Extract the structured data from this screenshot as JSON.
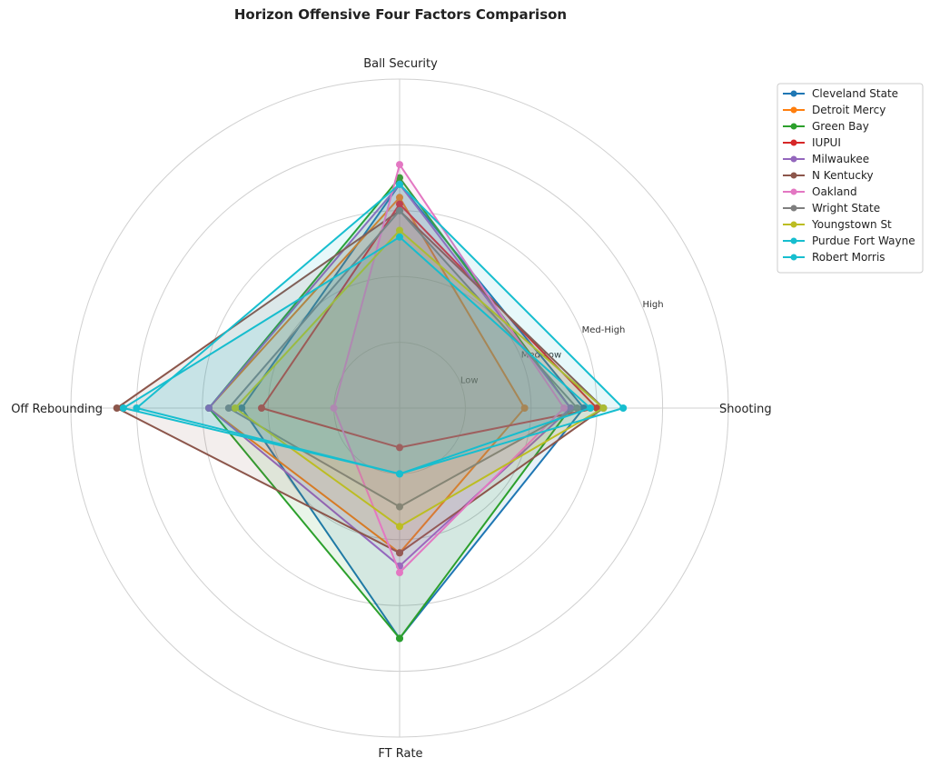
{
  "chart_data": {
    "type": "radar",
    "title": "Horizon Offensive Four Factors Comparison",
    "axes": [
      "Shooting",
      "Ball Security",
      "Off Rebounding",
      "FT Rate"
    ],
    "rlim": [
      0,
      5
    ],
    "ring_labels": [
      "Low",
      "Med-Low",
      "Med-High",
      "High"
    ],
    "grid": true,
    "legend_position": "upper-right-outside",
    "series": [
      {
        "name": "Cleveland State",
        "color": "#1f77b4",
        "values": [
          2.8,
          3.4,
          2.4,
          3.5
        ]
      },
      {
        "name": "Detroit Mercy",
        "color": "#ff7f0e",
        "values": [
          1.9,
          3.2,
          2.9,
          2.2
        ]
      },
      {
        "name": "Green Bay",
        "color": "#2ca02c",
        "values": [
          2.6,
          3.5,
          2.9,
          3.5
        ]
      },
      {
        "name": "IUPUI",
        "color": "#d62728",
        "values": [
          3.0,
          3.1,
          2.1,
          0.6
        ]
      },
      {
        "name": "Milwaukee",
        "color": "#9467bd",
        "values": [
          2.6,
          3.4,
          2.9,
          2.4
        ]
      },
      {
        "name": "N Kentucky",
        "color": "#8c564b",
        "values": [
          3.1,
          3.0,
          4.3,
          2.2
        ]
      },
      {
        "name": "Oakland",
        "color": "#e377c2",
        "values": [
          2.5,
          3.7,
          1.0,
          2.5
        ]
      },
      {
        "name": "Wright State",
        "color": "#7f7f7f",
        "values": [
          2.7,
          3.0,
          2.6,
          1.5
        ]
      },
      {
        "name": "Youngstown St",
        "color": "#bcbd22",
        "values": [
          3.1,
          2.7,
          2.5,
          1.8
        ]
      },
      {
        "name": "Purdue Fort Wayne",
        "color": "#17becf",
        "values": [
          2.9,
          2.6,
          4.2,
          1.0
        ]
      },
      {
        "name": "Robert Morris",
        "color": "#17becf",
        "values": [
          3.4,
          3.4,
          4.0,
          1.0
        ]
      }
    ]
  }
}
